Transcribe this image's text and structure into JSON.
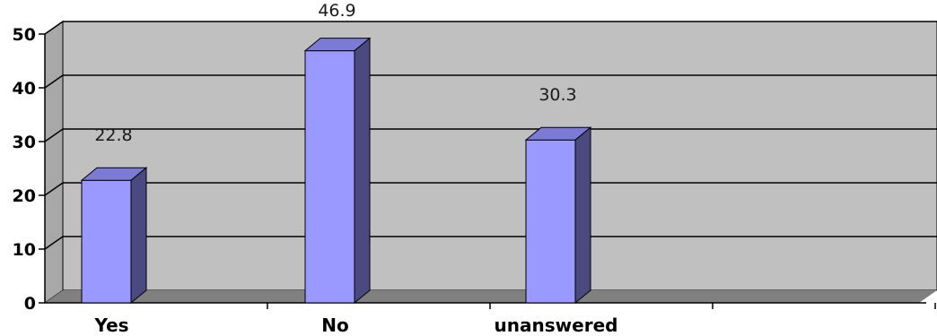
{
  "chart_data": {
    "type": "bar",
    "categories": [
      "Yes",
      "No",
      "unanswered"
    ],
    "values": [
      22.8,
      46.9,
      30.3
    ],
    "data_labels": [
      "22.8",
      "46.9",
      "30.3"
    ],
    "ylim": [
      0,
      50
    ],
    "yticks": [
      0,
      10,
      20,
      30,
      40,
      50
    ],
    "grid": true,
    "legend": "none",
    "style": "3d-column",
    "colors": {
      "bar_front": "#9999ff",
      "bar_side": "#4a4a80",
      "bar_top": "#7b7bd6",
      "wall": "#c0c0c0",
      "floor": "#808080",
      "gridline": "#000000"
    }
  }
}
